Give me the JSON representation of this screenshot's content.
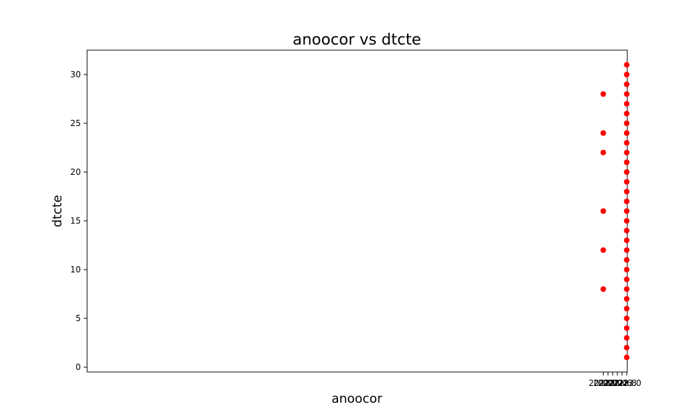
{
  "chart_data": {
    "type": "scatter",
    "title": "anoocor vs dtcte",
    "xlabel": "anoocor",
    "ylabel": "dtcte",
    "xlim": [
      1999.975,
      2023.025
    ],
    "ylim": [
      -0.5,
      32.5
    ],
    "grid": false,
    "marker_color": "#ff0000",
    "xticks": [
      2022.0,
      2022.2,
      2022.4,
      2022.6,
      2022.8,
      2023.0
    ],
    "xtick_labels": [
      "2022.0",
      "2022.2",
      "2022.4",
      "2022.6",
      "2022.8",
      "2023.0"
    ],
    "yticks": [
      0,
      5,
      10,
      15,
      20,
      25,
      30
    ],
    "ytick_labels": [
      "0",
      "5",
      "10",
      "15",
      "20",
      "25",
      "30"
    ],
    "points": [
      {
        "x": 2022.0,
        "y": 8
      },
      {
        "x": 2022.0,
        "y": 12
      },
      {
        "x": 2022.0,
        "y": 16
      },
      {
        "x": 2022.0,
        "y": 22
      },
      {
        "x": 2022.0,
        "y": 24
      },
      {
        "x": 2022.0,
        "y": 28
      },
      {
        "x": 2023.0,
        "y": 1
      },
      {
        "x": 2023.0,
        "y": 2
      },
      {
        "x": 2023.0,
        "y": 3
      },
      {
        "x": 2023.0,
        "y": 4
      },
      {
        "x": 2023.0,
        "y": 5
      },
      {
        "x": 2023.0,
        "y": 6
      },
      {
        "x": 2023.0,
        "y": 7
      },
      {
        "x": 2023.0,
        "y": 8
      },
      {
        "x": 2023.0,
        "y": 9
      },
      {
        "x": 2023.0,
        "y": 10
      },
      {
        "x": 2023.0,
        "y": 11
      },
      {
        "x": 2023.0,
        "y": 12
      },
      {
        "x": 2023.0,
        "y": 13
      },
      {
        "x": 2023.0,
        "y": 14
      },
      {
        "x": 2023.0,
        "y": 15
      },
      {
        "x": 2023.0,
        "y": 16
      },
      {
        "x": 2023.0,
        "y": 17
      },
      {
        "x": 2023.0,
        "y": 18
      },
      {
        "x": 2023.0,
        "y": 19
      },
      {
        "x": 2023.0,
        "y": 20
      },
      {
        "x": 2023.0,
        "y": 21
      },
      {
        "x": 2023.0,
        "y": 22
      },
      {
        "x": 2023.0,
        "y": 23
      },
      {
        "x": 2023.0,
        "y": 24
      },
      {
        "x": 2023.0,
        "y": 25
      },
      {
        "x": 2023.0,
        "y": 26
      },
      {
        "x": 2023.0,
        "y": 27
      },
      {
        "x": 2023.0,
        "y": 28
      },
      {
        "x": 2023.0,
        "y": 29
      },
      {
        "x": 2023.0,
        "y": 30
      },
      {
        "x": 2023.0,
        "y": 31
      }
    ]
  }
}
